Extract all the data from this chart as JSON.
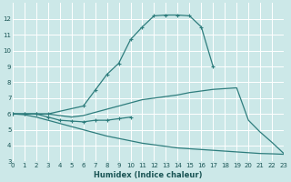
{
  "xlabel": "Humidex (Indice chaleur)",
  "xlim": [
    0,
    23
  ],
  "ylim": [
    3,
    13
  ],
  "yticks": [
    3,
    4,
    5,
    6,
    7,
    8,
    9,
    10,
    11,
    12
  ],
  "xticks": [
    0,
    1,
    2,
    3,
    4,
    5,
    6,
    7,
    8,
    9,
    10,
    11,
    12,
    13,
    14,
    15,
    16,
    17,
    18,
    19,
    20,
    21,
    22,
    23
  ],
  "bg_color": "#cce8e8",
  "line_color": "#2e7d7d",
  "grid_color": "#ffffff",
  "line1_x": [
    0,
    1,
    2,
    3,
    6,
    7,
    8,
    9,
    10,
    11,
    12,
    13,
    14,
    15,
    16,
    17
  ],
  "line1_y": [
    6,
    6,
    6,
    6,
    6.5,
    7.5,
    8.5,
    9.2,
    10.7,
    11.5,
    12.2,
    12.25,
    12.25,
    12.2,
    11.5,
    9.0
  ],
  "line2_x": [
    0,
    1,
    2,
    3,
    4,
    5,
    6,
    7,
    8,
    9,
    10,
    11,
    12,
    13,
    14,
    15,
    16,
    17,
    18,
    19,
    20,
    21,
    22,
    23
  ],
  "line2_y": [
    6,
    6,
    6,
    6,
    5.9,
    5.8,
    5.9,
    6.1,
    6.3,
    6.5,
    6.7,
    6.9,
    7.0,
    7.1,
    7.2,
    7.35,
    7.45,
    7.55,
    7.6,
    7.65,
    5.6,
    4.85,
    4.2,
    3.5
  ],
  "line3_x": [
    0,
    1,
    2,
    3,
    4,
    5,
    6,
    7,
    8,
    9,
    10
  ],
  "line3_y": [
    6,
    6,
    6,
    5.8,
    5.6,
    5.55,
    5.5,
    5.6,
    5.6,
    5.7,
    5.8
  ],
  "line4_x": [
    0,
    1,
    2,
    3,
    4,
    5,
    6,
    7,
    8,
    9,
    10,
    11,
    12,
    13,
    14,
    15,
    16,
    17,
    18,
    19,
    20,
    21,
    22,
    23
  ],
  "line4_y": [
    6,
    5.95,
    5.8,
    5.6,
    5.4,
    5.2,
    5.0,
    4.8,
    4.6,
    4.45,
    4.3,
    4.15,
    4.05,
    3.95,
    3.85,
    3.8,
    3.75,
    3.7,
    3.65,
    3.6,
    3.55,
    3.5,
    3.48,
    3.45
  ]
}
